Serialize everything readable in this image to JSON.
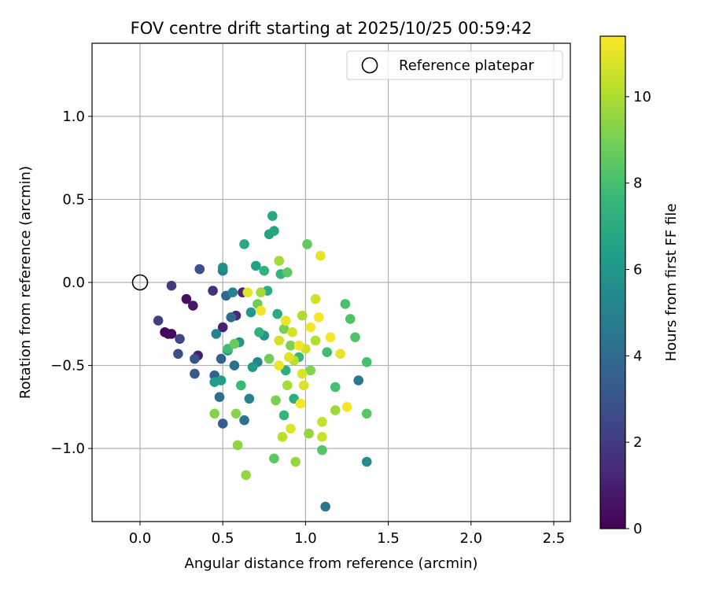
{
  "chart_data": {
    "type": "scatter",
    "title": "FOV centre drift starting at 2025/10/25 00:59:42",
    "xlabel": "Angular distance from reference (arcmin)",
    "ylabel": "Rotation from reference (arcmin)",
    "xlim": [
      -0.29,
      2.6
    ],
    "ylim": [
      -1.44,
      1.44
    ],
    "x_ticks": [
      0.0,
      0.5,
      1.0,
      1.5,
      2.0,
      2.5
    ],
    "x_tick_labels": [
      "0.0",
      "0.5",
      "1.0",
      "1.5",
      "2.0",
      "2.5"
    ],
    "y_ticks": [
      -1.0,
      -0.5,
      0.0,
      0.5,
      1.0
    ],
    "y_tick_labels": [
      "−1.0",
      "−0.5",
      "0.0",
      "0.5",
      "1.0"
    ],
    "grid": true,
    "legend": {
      "position": "top-right",
      "entries": [
        {
          "label": "Reference platepar",
          "marker": "open-circle"
        }
      ]
    },
    "reference_point": {
      "x": 0.0,
      "y": 0.0
    },
    "colorbar": {
      "label": "Hours from first FF file",
      "range": [
        0,
        11.4
      ],
      "ticks": [
        0,
        2,
        4,
        6,
        8,
        10
      ],
      "tick_labels": [
        "0",
        "2",
        "4",
        "6",
        "8",
        "10"
      ],
      "colormap": "viridis",
      "colormap_stops": [
        "#440154",
        "#482878",
        "#3e4989",
        "#31688e",
        "#26828e",
        "#1f9e89",
        "#35b779",
        "#6ece58",
        "#b5de2b",
        "#fde725"
      ]
    },
    "series": [
      {
        "name": "FOV centre drift",
        "points": [
          {
            "x": 0.15,
            "y": -0.3,
            "h": 0.1
          },
          {
            "x": 0.17,
            "y": -0.31,
            "h": 0.2
          },
          {
            "x": 0.19,
            "y": -0.31,
            "h": 0.3
          },
          {
            "x": 0.28,
            "y": -0.1,
            "h": 0.5
          },
          {
            "x": 0.32,
            "y": -0.14,
            "h": 0.7
          },
          {
            "x": 0.35,
            "y": -0.44,
            "h": 0.9
          },
          {
            "x": 0.5,
            "y": -0.27,
            "h": 1.0
          },
          {
            "x": 0.62,
            "y": -0.06,
            "h": 1.2
          },
          {
            "x": 0.58,
            "y": -0.2,
            "h": 1.3
          },
          {
            "x": 0.44,
            "y": -0.05,
            "h": 1.6
          },
          {
            "x": 0.19,
            "y": -0.02,
            "h": 2.0
          },
          {
            "x": 0.11,
            "y": -0.23,
            "h": 2.2
          },
          {
            "x": 0.24,
            "y": -0.34,
            "h": 2.5
          },
          {
            "x": 0.23,
            "y": -0.43,
            "h": 2.7
          },
          {
            "x": 0.36,
            "y": 0.08,
            "h": 2.8
          },
          {
            "x": 0.33,
            "y": -0.46,
            "h": 3.0
          },
          {
            "x": 0.33,
            "y": -0.55,
            "h": 3.2
          },
          {
            "x": 0.5,
            "y": -0.85,
            "h": 3.4
          },
          {
            "x": 0.45,
            "y": -0.56,
            "h": 3.5
          },
          {
            "x": 0.49,
            "y": -0.46,
            "h": 3.6
          },
          {
            "x": 0.52,
            "y": -0.08,
            "h": 3.8
          },
          {
            "x": 0.55,
            "y": -0.21,
            "h": 3.9
          },
          {
            "x": 0.48,
            "y": -0.69,
            "h": 4.0
          },
          {
            "x": 0.57,
            "y": -0.5,
            "h": 4.2
          },
          {
            "x": 0.63,
            "y": -0.83,
            "h": 4.3
          },
          {
            "x": 1.12,
            "y": -1.35,
            "h": 4.5
          },
          {
            "x": 1.32,
            "y": -0.59,
            "h": 4.6
          },
          {
            "x": 0.5,
            "y": 0.07,
            "h": 4.8
          },
          {
            "x": 0.46,
            "y": -0.31,
            "h": 5.0
          },
          {
            "x": 0.66,
            "y": -0.7,
            "h": 5.1
          },
          {
            "x": 0.71,
            "y": -0.48,
            "h": 5.2
          },
          {
            "x": 0.56,
            "y": -0.06,
            "h": 5.3
          },
          {
            "x": 1.37,
            "y": -1.08,
            "h": 5.5
          },
          {
            "x": 0.5,
            "y": 0.09,
            "h": 5.6
          },
          {
            "x": 0.53,
            "y": -0.41,
            "h": 5.7
          },
          {
            "x": 0.6,
            "y": -0.36,
            "h": 5.9
          },
          {
            "x": 0.67,
            "y": -0.18,
            "h": 6.0
          },
          {
            "x": 0.75,
            "y": -0.32,
            "h": 6.1
          },
          {
            "x": 0.68,
            "y": -0.51,
            "h": 6.2
          },
          {
            "x": 0.45,
            "y": -0.6,
            "h": 6.3
          },
          {
            "x": 0.49,
            "y": -0.59,
            "h": 6.4
          },
          {
            "x": 0.7,
            "y": 0.1,
            "h": 6.5
          },
          {
            "x": 0.78,
            "y": 0.29,
            "h": 6.6
          },
          {
            "x": 0.81,
            "y": 0.31,
            "h": 6.7
          },
          {
            "x": 0.8,
            "y": 0.4,
            "h": 6.8
          },
          {
            "x": 0.63,
            "y": 0.23,
            "h": 6.9
          },
          {
            "x": 0.77,
            "y": -0.05,
            "h": 7.0
          },
          {
            "x": 0.83,
            "y": -0.19,
            "h": 7.0
          },
          {
            "x": 0.93,
            "y": -0.7,
            "h": 7.1
          },
          {
            "x": 0.88,
            "y": -0.53,
            "h": 7.2
          },
          {
            "x": 0.72,
            "y": -0.3,
            "h": 7.3
          },
          {
            "x": 0.85,
            "y": 0.05,
            "h": 7.4
          },
          {
            "x": 0.75,
            "y": 0.07,
            "h": 7.4
          },
          {
            "x": 0.87,
            "y": -0.8,
            "h": 7.5
          },
          {
            "x": 0.96,
            "y": -0.45,
            "h": 7.6
          },
          {
            "x": 0.61,
            "y": -0.62,
            "h": 7.7
          },
          {
            "x": 0.53,
            "y": -0.4,
            "h": 7.8
          },
          {
            "x": 1.13,
            "y": -0.42,
            "h": 7.9
          },
          {
            "x": 1.18,
            "y": -0.63,
            "h": 8.0
          },
          {
            "x": 1.37,
            "y": -0.48,
            "h": 8.0
          },
          {
            "x": 1.24,
            "y": -0.13,
            "h": 8.1
          },
          {
            "x": 1.27,
            "y": -0.22,
            "h": 8.2
          },
          {
            "x": 1.3,
            "y": -0.33,
            "h": 8.2
          },
          {
            "x": 1.1,
            "y": -1.01,
            "h": 8.3
          },
          {
            "x": 1.37,
            "y": -0.79,
            "h": 8.4
          },
          {
            "x": 0.81,
            "y": -1.06,
            "h": 8.5
          },
          {
            "x": 0.89,
            "y": 0.06,
            "h": 8.5
          },
          {
            "x": 1.01,
            "y": 0.23,
            "h": 8.6
          },
          {
            "x": 0.57,
            "y": -0.37,
            "h": 8.7
          },
          {
            "x": 0.71,
            "y": -0.13,
            "h": 8.8
          },
          {
            "x": 0.78,
            "y": -0.46,
            "h": 8.9
          },
          {
            "x": 0.82,
            "y": -0.71,
            "h": 9.0
          },
          {
            "x": 0.87,
            "y": -0.28,
            "h": 9.0
          },
          {
            "x": 0.91,
            "y": -0.38,
            "h": 9.1
          },
          {
            "x": 1.03,
            "y": -0.53,
            "h": 9.2
          },
          {
            "x": 0.58,
            "y": -0.79,
            "h": 9.3
          },
          {
            "x": 0.45,
            "y": -0.79,
            "h": 9.3
          },
          {
            "x": 0.59,
            "y": -0.98,
            "h": 9.4
          },
          {
            "x": 0.64,
            "y": -1.16,
            "h": 9.5
          },
          {
            "x": 0.94,
            "y": -1.08,
            "h": 9.6
          },
          {
            "x": 1.02,
            "y": -0.91,
            "h": 9.6
          },
          {
            "x": 1.18,
            "y": -0.77,
            "h": 9.7
          },
          {
            "x": 0.84,
            "y": 0.13,
            "h": 9.8
          },
          {
            "x": 0.73,
            "y": -0.06,
            "h": 9.8
          },
          {
            "x": 0.89,
            "y": -0.62,
            "h": 9.9
          },
          {
            "x": 0.98,
            "y": -0.2,
            "h": 10.0
          },
          {
            "x": 1.06,
            "y": -0.35,
            "h": 10.1
          },
          {
            "x": 0.93,
            "y": -0.47,
            "h": 10.2
          },
          {
            "x": 0.86,
            "y": -0.93,
            "h": 10.3
          },
          {
            "x": 1.1,
            "y": -0.84,
            "h": 10.4
          },
          {
            "x": 1.1,
            "y": -0.93,
            "h": 10.5
          },
          {
            "x": 1.06,
            "y": -0.1,
            "h": 10.6
          },
          {
            "x": 0.84,
            "y": -0.35,
            "h": 10.7
          },
          {
            "x": 0.99,
            "y": -0.62,
            "h": 10.8
          },
          {
            "x": 0.91,
            "y": -0.88,
            "h": 10.9
          },
          {
            "x": 1.09,
            "y": 0.16,
            "h": 11.0
          },
          {
            "x": 0.65,
            "y": -0.06,
            "h": 11.0
          },
          {
            "x": 0.73,
            "y": -0.17,
            "h": 11.1
          },
          {
            "x": 0.88,
            "y": -0.23,
            "h": 11.1
          },
          {
            "x": 1.03,
            "y": -0.27,
            "h": 11.2
          },
          {
            "x": 0.96,
            "y": -0.38,
            "h": 11.2
          },
          {
            "x": 1.08,
            "y": -0.21,
            "h": 11.3
          },
          {
            "x": 1.25,
            "y": -0.75,
            "h": 11.3
          },
          {
            "x": 1.15,
            "y": -0.33,
            "h": 11.3
          },
          {
            "x": 0.97,
            "y": -0.73,
            "h": 11.2
          },
          {
            "x": 0.84,
            "y": -0.5,
            "h": 11.1
          },
          {
            "x": 1.21,
            "y": -0.43,
            "h": 11.0
          },
          {
            "x": 0.9,
            "y": -0.45,
            "h": 10.9
          },
          {
            "x": 0.98,
            "y": -0.55,
            "h": 10.8
          },
          {
            "x": 0.92,
            "y": -0.3,
            "h": 10.7
          },
          {
            "x": 1.0,
            "y": -0.4,
            "h": 10.6
          }
        ]
      }
    ]
  }
}
